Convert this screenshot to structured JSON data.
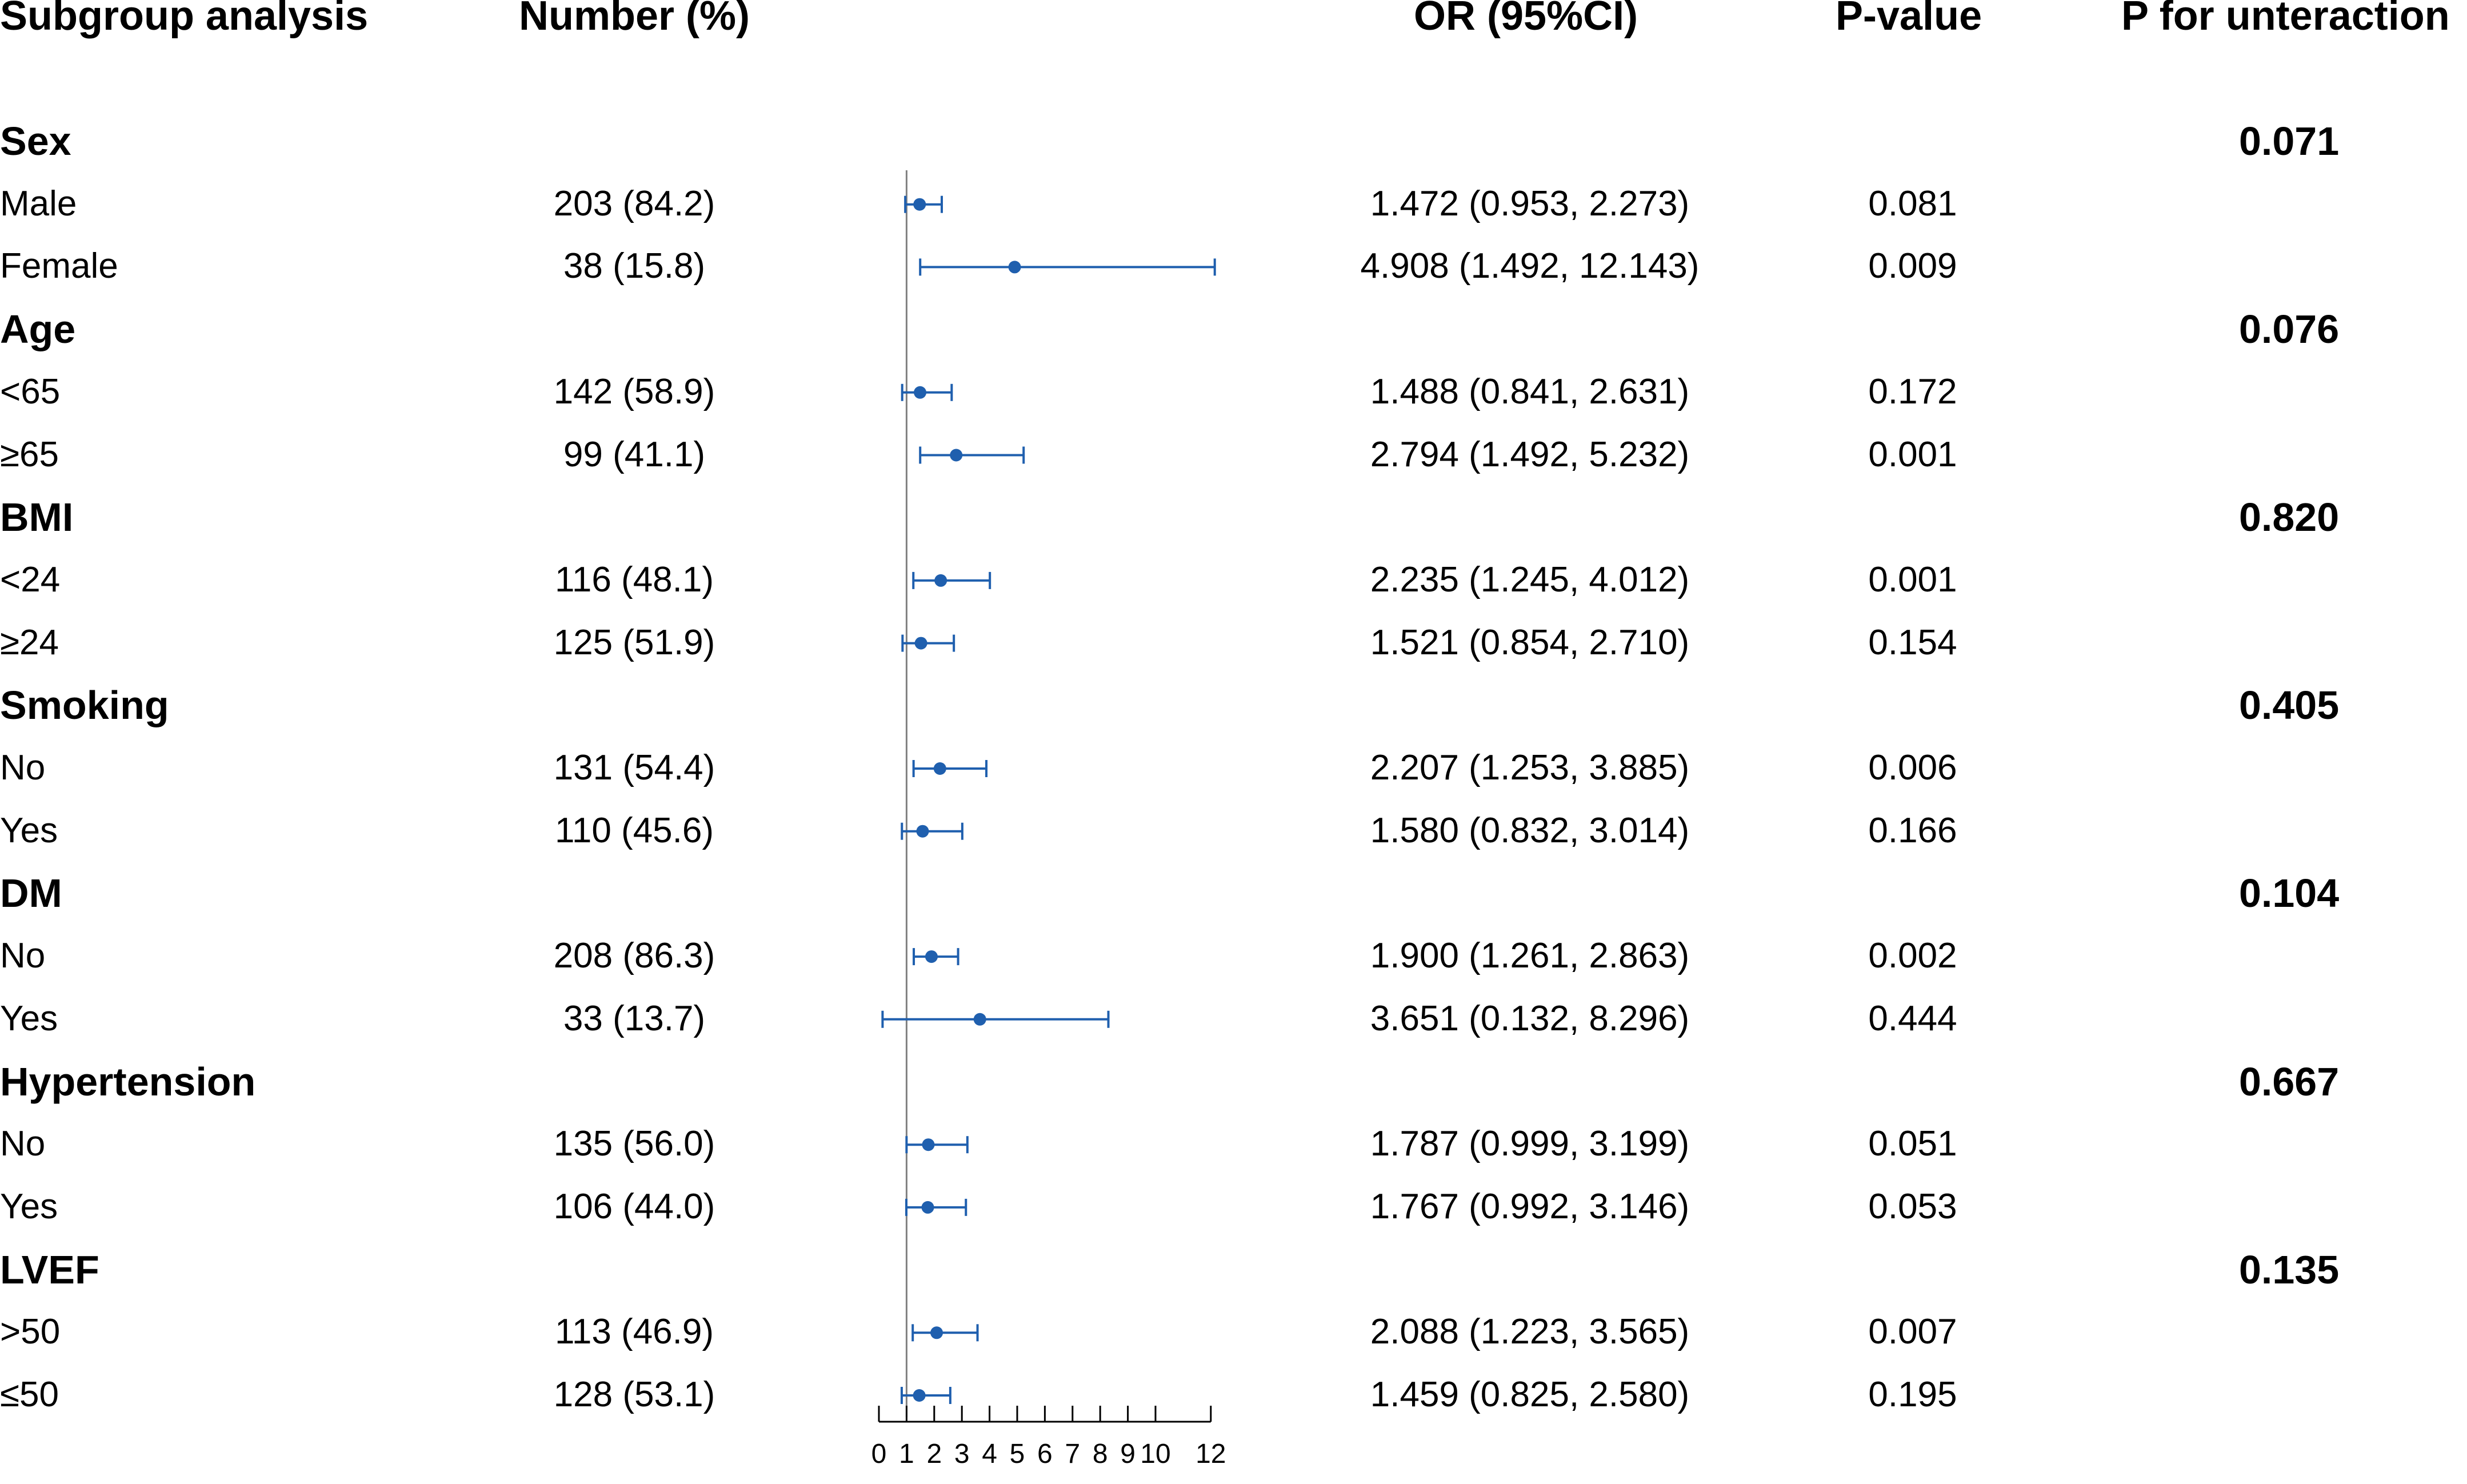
{
  "headers": {
    "subgroup": "Subgroup analysis",
    "number": "Number (%)",
    "or": "OR (95%CI)",
    "pvalue": "P-value",
    "pint": "P for unteraction"
  },
  "groups": [
    {
      "label": "Sex",
      "p_interaction": "0.071",
      "rows": [
        {
          "label": "Male",
          "number": "203 (84.2)",
          "or_text": "1.472 (0.953, 2.273)",
          "p": "0.081"
        },
        {
          "label": "Female",
          "number": "38 (15.8)",
          "or_text": "4.908 (1.492, 12.143)",
          "p": "0.009"
        }
      ]
    },
    {
      "label": "Age",
      "p_interaction": "0.076",
      "rows": [
        {
          "label": "<65",
          "number": "142 (58.9)",
          "or_text": "1.488 (0.841, 2.631)",
          "p": "0.172"
        },
        {
          "label": "≥65",
          "number": "99 (41.1)",
          "or_text": "2.794 (1.492, 5.232)",
          "p": "0.001"
        }
      ]
    },
    {
      "label": "BMI",
      "p_interaction": "0.820",
      "rows": [
        {
          "label": "<24",
          "number": "116 (48.1)",
          "or_text": "2.235 (1.245, 4.012)",
          "p": "0.001"
        },
        {
          "label": "≥24",
          "number": "125 (51.9)",
          "or_text": "1.521 (0.854, 2.710)",
          "p": "0.154"
        }
      ]
    },
    {
      "label": "Smoking",
      "p_interaction": "0.405",
      "rows": [
        {
          "label": "No",
          "number": "131 (54.4)",
          "or_text": "2.207 (1.253, 3.885)",
          "p": "0.006"
        },
        {
          "label": "Yes",
          "number": "110 (45.6)",
          "or_text": "1.580 (0.832, 3.014)",
          "p": "0.166"
        }
      ]
    },
    {
      "label": "DM",
      "p_interaction": "0.104",
      "rows": [
        {
          "label": "No",
          "number": "208 (86.3)",
          "or_text": "1.900 (1.261, 2.863)",
          "p": "0.002"
        },
        {
          "label": "Yes",
          "number": "33 (13.7)",
          "or_text": "3.651 (0.132, 8.296)",
          "p": "0.444"
        }
      ]
    },
    {
      "label": "Hypertension",
      "p_interaction": "0.667",
      "rows": [
        {
          "label": "No",
          "number": "135 (56.0)",
          "or_text": "1.787 (0.999, 3.199)",
          "p": "0.051"
        },
        {
          "label": "Yes",
          "number": "106 (44.0)",
          "or_text": "1.767 (0.992, 3.146)",
          "p": "0.053"
        }
      ]
    },
    {
      "label": "LVEF",
      "p_interaction": "0.135",
      "rows": [
        {
          "label": ">50",
          "number": "113 (46.9)",
          "or_text": "2.088 (1.223, 3.565)",
          "p": "0.007"
        },
        {
          "label": "≤50",
          "number": "128 (53.1)",
          "or_text": "1.459 (0.825, 2.580)",
          "p": "0.195"
        }
      ]
    }
  ],
  "chart_data": {
    "type": "forest",
    "x_ticks": [
      0,
      1,
      2,
      3,
      4,
      5,
      6,
      7,
      8,
      9,
      10,
      12
    ],
    "xlim": [
      0,
      12
    ],
    "reference_line": 1,
    "series": [
      {
        "label": "Male",
        "or": 1.472,
        "lower": 0.953,
        "upper": 2.273
      },
      {
        "label": "Female",
        "or": 4.908,
        "lower": 1.492,
        "upper": 12.143
      },
      {
        "label": "<65",
        "or": 1.488,
        "lower": 0.841,
        "upper": 2.631
      },
      {
        "label": "≥65",
        "or": 2.794,
        "lower": 1.492,
        "upper": 5.232
      },
      {
        "label": "<24",
        "or": 2.235,
        "lower": 1.245,
        "upper": 4.012
      },
      {
        "label": "≥24",
        "or": 1.521,
        "lower": 0.854,
        "upper": 2.71
      },
      {
        "label": "No",
        "or": 2.207,
        "lower": 1.253,
        "upper": 3.885
      },
      {
        "label": "Yes",
        "or": 1.58,
        "lower": 0.832,
        "upper": 3.014
      },
      {
        "label": "No",
        "or": 1.9,
        "lower": 1.261,
        "upper": 2.863
      },
      {
        "label": "Yes",
        "or": 3.651,
        "lower": 0.132,
        "upper": 8.296
      },
      {
        "label": "No",
        "or": 1.787,
        "lower": 0.999,
        "upper": 3.199
      },
      {
        "label": "Yes",
        "or": 1.767,
        "lower": 0.992,
        "upper": 3.146
      },
      {
        "label": ">50",
        "or": 2.088,
        "lower": 1.223,
        "upper": 3.565
      },
      {
        "label": "≤50",
        "or": 1.459,
        "lower": 0.825,
        "upper": 2.58
      }
    ],
    "colors": {
      "marker": "#1f5fae",
      "axis": "#000000",
      "reference": "#808080"
    }
  }
}
